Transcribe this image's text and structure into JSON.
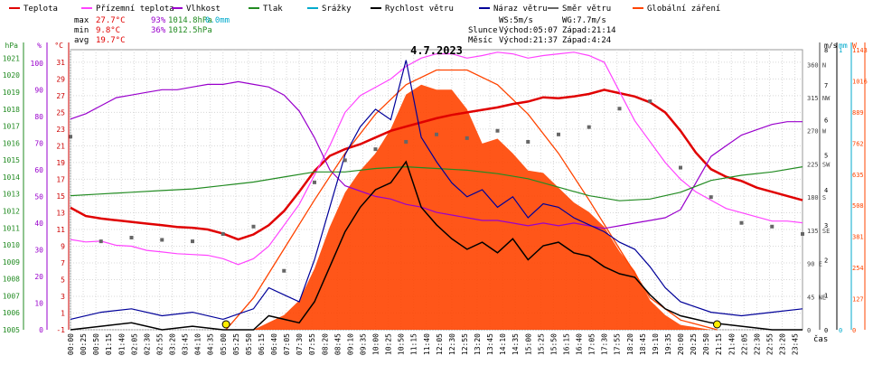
{
  "legend": {
    "items": [
      {
        "label": "Teplota",
        "color": "#e00000"
      },
      {
        "label": "Přízemní teplota",
        "color": "#ff44ff"
      },
      {
        "label": "Vlhkost",
        "color": "#9900cc"
      },
      {
        "label": "Tlak",
        "color": "#228b22"
      },
      {
        "label": "Srážky",
        "color": "#00aacc"
      },
      {
        "label": "Rychlost větru",
        "color": "#000000"
      },
      {
        "label": "Náraz větru",
        "color": "#000099"
      },
      {
        "label": "Směr větru",
        "color": "#666666"
      },
      {
        "label": "Globální záření",
        "color": "#ff4400"
      }
    ]
  },
  "stats": {
    "max": {
      "label": "max",
      "temp": "27.7°C",
      "hum": "93%",
      "press": "1014.8hPa",
      "rain": "0.0mm"
    },
    "min": {
      "label": "min",
      "temp": "9.8°C",
      "hum": "36%",
      "press": "1012.5hPa"
    },
    "avg": {
      "label": "avg",
      "temp": "19.7°C"
    }
  },
  "wind_info": {
    "ws": "WS:5m/s",
    "wg": "WG:7.7m/s"
  },
  "sun": {
    "label": "Slunce",
    "rise": "Východ:05:07",
    "set": "Západ:21:14"
  },
  "moon": {
    "label": "Měsíc",
    "rise": "Východ:21:37",
    "set": "Západ:4:24"
  },
  "chart_data": {
    "type": "line",
    "title": "4.7.2023",
    "xlabel": "čas",
    "x_ticks": [
      "00:00",
      "00:25",
      "00:50",
      "01:15",
      "01:40",
      "02:05",
      "02:30",
      "02:55",
      "03:20",
      "03:45",
      "04:10",
      "04:35",
      "05:00",
      "05:25",
      "05:50",
      "06:15",
      "06:40",
      "07:05",
      "07:30",
      "07:55",
      "08:20",
      "08:45",
      "09:10",
      "09:35",
      "10:00",
      "10:25",
      "10:50",
      "11:15",
      "11:40",
      "12:05",
      "12:30",
      "12:55",
      "13:20",
      "13:45",
      "14:10",
      "14:35",
      "15:00",
      "15:25",
      "15:50",
      "16:15",
      "16:40",
      "17:05",
      "17:30",
      "17:55",
      "18:20",
      "18:45",
      "19:10",
      "19:35",
      "20:00",
      "20:25",
      "20:50",
      "21:15",
      "21:40",
      "22:05",
      "22:30",
      "22:55",
      "23:20",
      "23:45"
    ],
    "axes": {
      "pressure": {
        "unit": "hPa",
        "ticks": [
          "1021",
          "1020",
          "1019",
          "1018",
          "1017",
          "1016",
          "1015",
          "1014",
          "1013",
          "1012",
          "1011",
          "1010",
          "1009",
          "1008",
          "1007",
          "1006",
          "1005"
        ],
        "range": [
          1005,
          1021.5
        ]
      },
      "humidity": {
        "unit": "%",
        "ticks": [
          "100",
          "90",
          "80",
          "70",
          "60",
          "50",
          "40",
          "30",
          "20",
          "10",
          "0"
        ],
        "range": [
          0,
          105
        ]
      },
      "temperature": {
        "unit": "°C",
        "ticks": [
          "31",
          "29",
          "27",
          "25",
          "23",
          "21",
          "19",
          "17",
          "15",
          "13",
          "11",
          "9",
          "7",
          "5",
          "3",
          "1",
          "-1"
        ],
        "range": [
          -1,
          32.5
        ]
      },
      "wind_dir": {
        "ticks": [
          "360 N",
          "315 NW",
          "270 W",
          "225 SW",
          "180 S",
          "135 SE",
          "90 E",
          "45 NE",
          "0"
        ],
        "range": [
          0,
          380
        ]
      },
      "wind_speed": {
        "unit": "m/s",
        "ticks": [
          "8",
          "7",
          "6",
          "5",
          "4",
          "3",
          "2",
          "1",
          "0"
        ],
        "range": [
          0,
          8
        ]
      },
      "rain": {
        "unit": "mm",
        "ticks": [
          "1",
          "0"
        ],
        "range": [
          0,
          1
        ]
      },
      "radiation": {
        "unit": "W",
        "ticks": [
          "1143",
          "1016",
          "889",
          "762",
          "635",
          "508",
          "381",
          "254",
          "127",
          "0"
        ],
        "range": [
          0,
          1143
        ]
      }
    },
    "series": [
      {
        "name": "Teplota",
        "color": "#e00000",
        "x": [
          0,
          0.5,
          1,
          1.5,
          2,
          2.5,
          3,
          3.5,
          4,
          4.5,
          5,
          5.5,
          6,
          6.5,
          7,
          7.5,
          8,
          8.5,
          9,
          9.5,
          10,
          10.5,
          11,
          11.5,
          12,
          12.5,
          13,
          13.5,
          14,
          14.5,
          15,
          15.5,
          16,
          16.5,
          17,
          17.5,
          18,
          18.5,
          19,
          19.5,
          20,
          20.5,
          21,
          21.5,
          22,
          22.5,
          23,
          23.5,
          24
        ],
        "values": [
          13.6,
          12.6,
          12.3,
          12.1,
          11.9,
          11.7,
          11.5,
          11.3,
          11.2,
          11.0,
          10.5,
          9.8,
          10.4,
          11.5,
          13.2,
          15.5,
          18.0,
          19.8,
          20.6,
          21.2,
          22.0,
          22.8,
          23.3,
          23.8,
          24.3,
          24.7,
          25.0,
          25.3,
          25.6,
          26.0,
          26.3,
          26.8,
          26.7,
          26.9,
          27.2,
          27.7,
          27.3,
          26.9,
          26.2,
          25.0,
          22.8,
          20.2,
          18.2,
          17.3,
          16.8,
          16.0,
          15.5,
          15.0,
          14.5
        ]
      },
      {
        "name": "Přízemní teplota",
        "color": "#ff44ff",
        "x": [
          0,
          0.5,
          1,
          1.5,
          2,
          2.5,
          3,
          3.5,
          4,
          4.5,
          5,
          5.5,
          6,
          6.5,
          7,
          7.5,
          8,
          8.5,
          9,
          9.5,
          10,
          10.5,
          11,
          11.5,
          12,
          12.5,
          13,
          13.5,
          14,
          14.5,
          15,
          15.5,
          16,
          16.5,
          17,
          17.5,
          18,
          18.5,
          19,
          19.5,
          20,
          20.5,
          21,
          21.5,
          22,
          22.5,
          23,
          23.5,
          24
        ],
        "values": [
          9.8,
          9.5,
          9.6,
          9.1,
          9.0,
          8.5,
          8.3,
          8.1,
          8.0,
          7.9,
          7.5,
          6.8,
          7.5,
          9.0,
          11.5,
          14.0,
          17.5,
          21.0,
          25.0,
          27.0,
          28.0,
          29.0,
          30.5,
          31.5,
          32.0,
          32.0,
          31.5,
          31.8,
          32.2,
          32.0,
          31.5,
          31.8,
          32.0,
          32.2,
          31.8,
          31.0,
          27.5,
          24.0,
          21.5,
          19.0,
          17.0,
          15.5,
          14.5,
          13.5,
          13.0,
          12.5,
          12.0,
          12.0,
          11.8
        ]
      },
      {
        "name": "Vlhkost",
        "color": "#9900cc",
        "x": [
          0,
          0.5,
          1,
          1.5,
          2,
          2.5,
          3,
          3.5,
          4,
          4.5,
          5,
          5.5,
          6,
          6.5,
          7,
          7.5,
          8,
          8.5,
          9,
          9.5,
          10,
          10.5,
          11,
          11.5,
          12,
          12.5,
          13,
          13.5,
          14,
          14.5,
          15,
          15.5,
          16,
          16.5,
          17,
          17.5,
          18,
          18.5,
          19,
          19.5,
          20,
          20.5,
          21,
          21.5,
          22,
          22.5,
          23,
          23.5,
          24
        ],
        "values": [
          79,
          81,
          84,
          87,
          88,
          89,
          90,
          90,
          91,
          92,
          92,
          93,
          92,
          91,
          88,
          82,
          72,
          60,
          54,
          52,
          50,
          49,
          47,
          46,
          44,
          43,
          42,
          41,
          41,
          40,
          39,
          40,
          39,
          40,
          39,
          38,
          39,
          40,
          41,
          42,
          45,
          55,
          65,
          69,
          73,
          75,
          77,
          78,
          78
        ]
      },
      {
        "name": "Tlak",
        "color": "#228b22",
        "x": [
          0,
          1,
          2,
          3,
          4,
          5,
          6,
          7,
          8,
          9,
          10,
          11,
          12,
          13,
          14,
          15,
          16,
          17,
          18,
          19,
          20,
          21,
          22,
          23,
          24
        ],
        "values": [
          1012.9,
          1013.0,
          1013.1,
          1013.2,
          1013.3,
          1013.5,
          1013.7,
          1014.0,
          1014.3,
          1014.3,
          1014.5,
          1014.6,
          1014.5,
          1014.4,
          1014.2,
          1013.9,
          1013.4,
          1012.9,
          1012.6,
          1012.7,
          1013.1,
          1013.8,
          1014.1,
          1014.3,
          1014.6
        ]
      },
      {
        "name": "Rychlost větru",
        "color": "#000000",
        "x": [
          0,
          1,
          2,
          3,
          4,
          5,
          6,
          6.5,
          7,
          7.5,
          8,
          8.5,
          9,
          9.5,
          10,
          10.5,
          11,
          11.5,
          12,
          12.5,
          13,
          13.5,
          14,
          14.5,
          15,
          15.5,
          16,
          16.5,
          17,
          17.5,
          18,
          18.5,
          19,
          19.5,
          20,
          21,
          22,
          23,
          24
        ],
        "values": [
          0,
          0.1,
          0.2,
          0,
          0.1,
          0,
          0,
          0.4,
          0.3,
          0.2,
          0.8,
          1.8,
          2.8,
          3.5,
          4.0,
          4.2,
          4.8,
          3.5,
          3.0,
          2.6,
          2.3,
          2.5,
          2.2,
          2.6,
          2.0,
          2.4,
          2.5,
          2.2,
          2.1,
          1.8,
          1.6,
          1.5,
          1.0,
          0.6,
          0.4,
          0.2,
          0.1,
          0,
          0
        ]
      },
      {
        "name": "Náraz větru",
        "color": "#000099",
        "x": [
          0,
          1,
          2,
          3,
          4,
          5,
          6,
          6.5,
          7,
          7.5,
          8,
          8.5,
          9,
          9.5,
          10,
          10.5,
          11,
          11.5,
          12,
          12.5,
          13,
          13.5,
          14,
          14.5,
          15,
          15.5,
          16,
          16.5,
          17,
          17.5,
          18,
          18.5,
          19,
          19.5,
          20,
          21,
          22,
          23,
          24
        ],
        "values": [
          0.3,
          0.5,
          0.6,
          0.4,
          0.5,
          0.3,
          0.6,
          1.2,
          1.0,
          0.8,
          2.0,
          3.5,
          5.0,
          5.8,
          6.3,
          6.0,
          7.7,
          5.5,
          4.8,
          4.2,
          3.8,
          4.0,
          3.5,
          3.8,
          3.2,
          3.6,
          3.5,
          3.2,
          3.0,
          2.8,
          2.5,
          2.3,
          1.8,
          1.2,
          0.8,
          0.5,
          0.4,
          0.5,
          0.6
        ]
      },
      {
        "name": "Globální záření",
        "color": "#ff4400",
        "x": [
          0,
          4,
          5,
          6,
          6.5,
          7,
          7.5,
          8,
          8.5,
          9,
          9.5,
          10,
          10.5,
          11,
          11.5,
          12,
          12.5,
          13,
          13.5,
          14,
          14.5,
          15,
          15.5,
          16,
          16.5,
          17,
          17.5,
          18,
          18.5,
          19,
          19.5,
          20,
          21,
          24
        ],
        "values": [
          0,
          0,
          0,
          0,
          30,
          60,
          120,
          250,
          420,
          560,
          650,
          720,
          820,
          960,
          1000,
          980,
          980,
          900,
          760,
          780,
          720,
          650,
          640,
          580,
          520,
          480,
          420,
          320,
          240,
          120,
          60,
          20,
          0,
          0
        ]
      }
    ],
    "wind_direction": {
      "name": "Směr větru",
      "color": "#666666",
      "x": [
        0,
        1,
        2,
        3,
        4,
        5,
        6,
        7,
        8,
        9,
        10,
        11,
        12,
        13,
        14,
        15,
        16,
        17,
        18,
        19,
        20,
        21,
        22,
        23,
        24
      ],
      "values": [
        262,
        120,
        125,
        122,
        120,
        130,
        140,
        80,
        200,
        230,
        245,
        255,
        265,
        260,
        270,
        255,
        265,
        275,
        300,
        310,
        220,
        180,
        145,
        140,
        130
      ]
    },
    "clear_sky_radiation": {
      "color": "#ff4400",
      "x": [
        5.1,
        6,
        7,
        8,
        9,
        10,
        11,
        12,
        13,
        14,
        15,
        16,
        17,
        18,
        19,
        20,
        21.2
      ],
      "values": [
        0,
        130,
        330,
        530,
        720,
        880,
        1000,
        1060,
        1060,
        1000,
        880,
        720,
        530,
        330,
        130,
        40,
        0
      ]
    },
    "sun_markers": {
      "rise": 5.1,
      "set": 21.2
    }
  }
}
